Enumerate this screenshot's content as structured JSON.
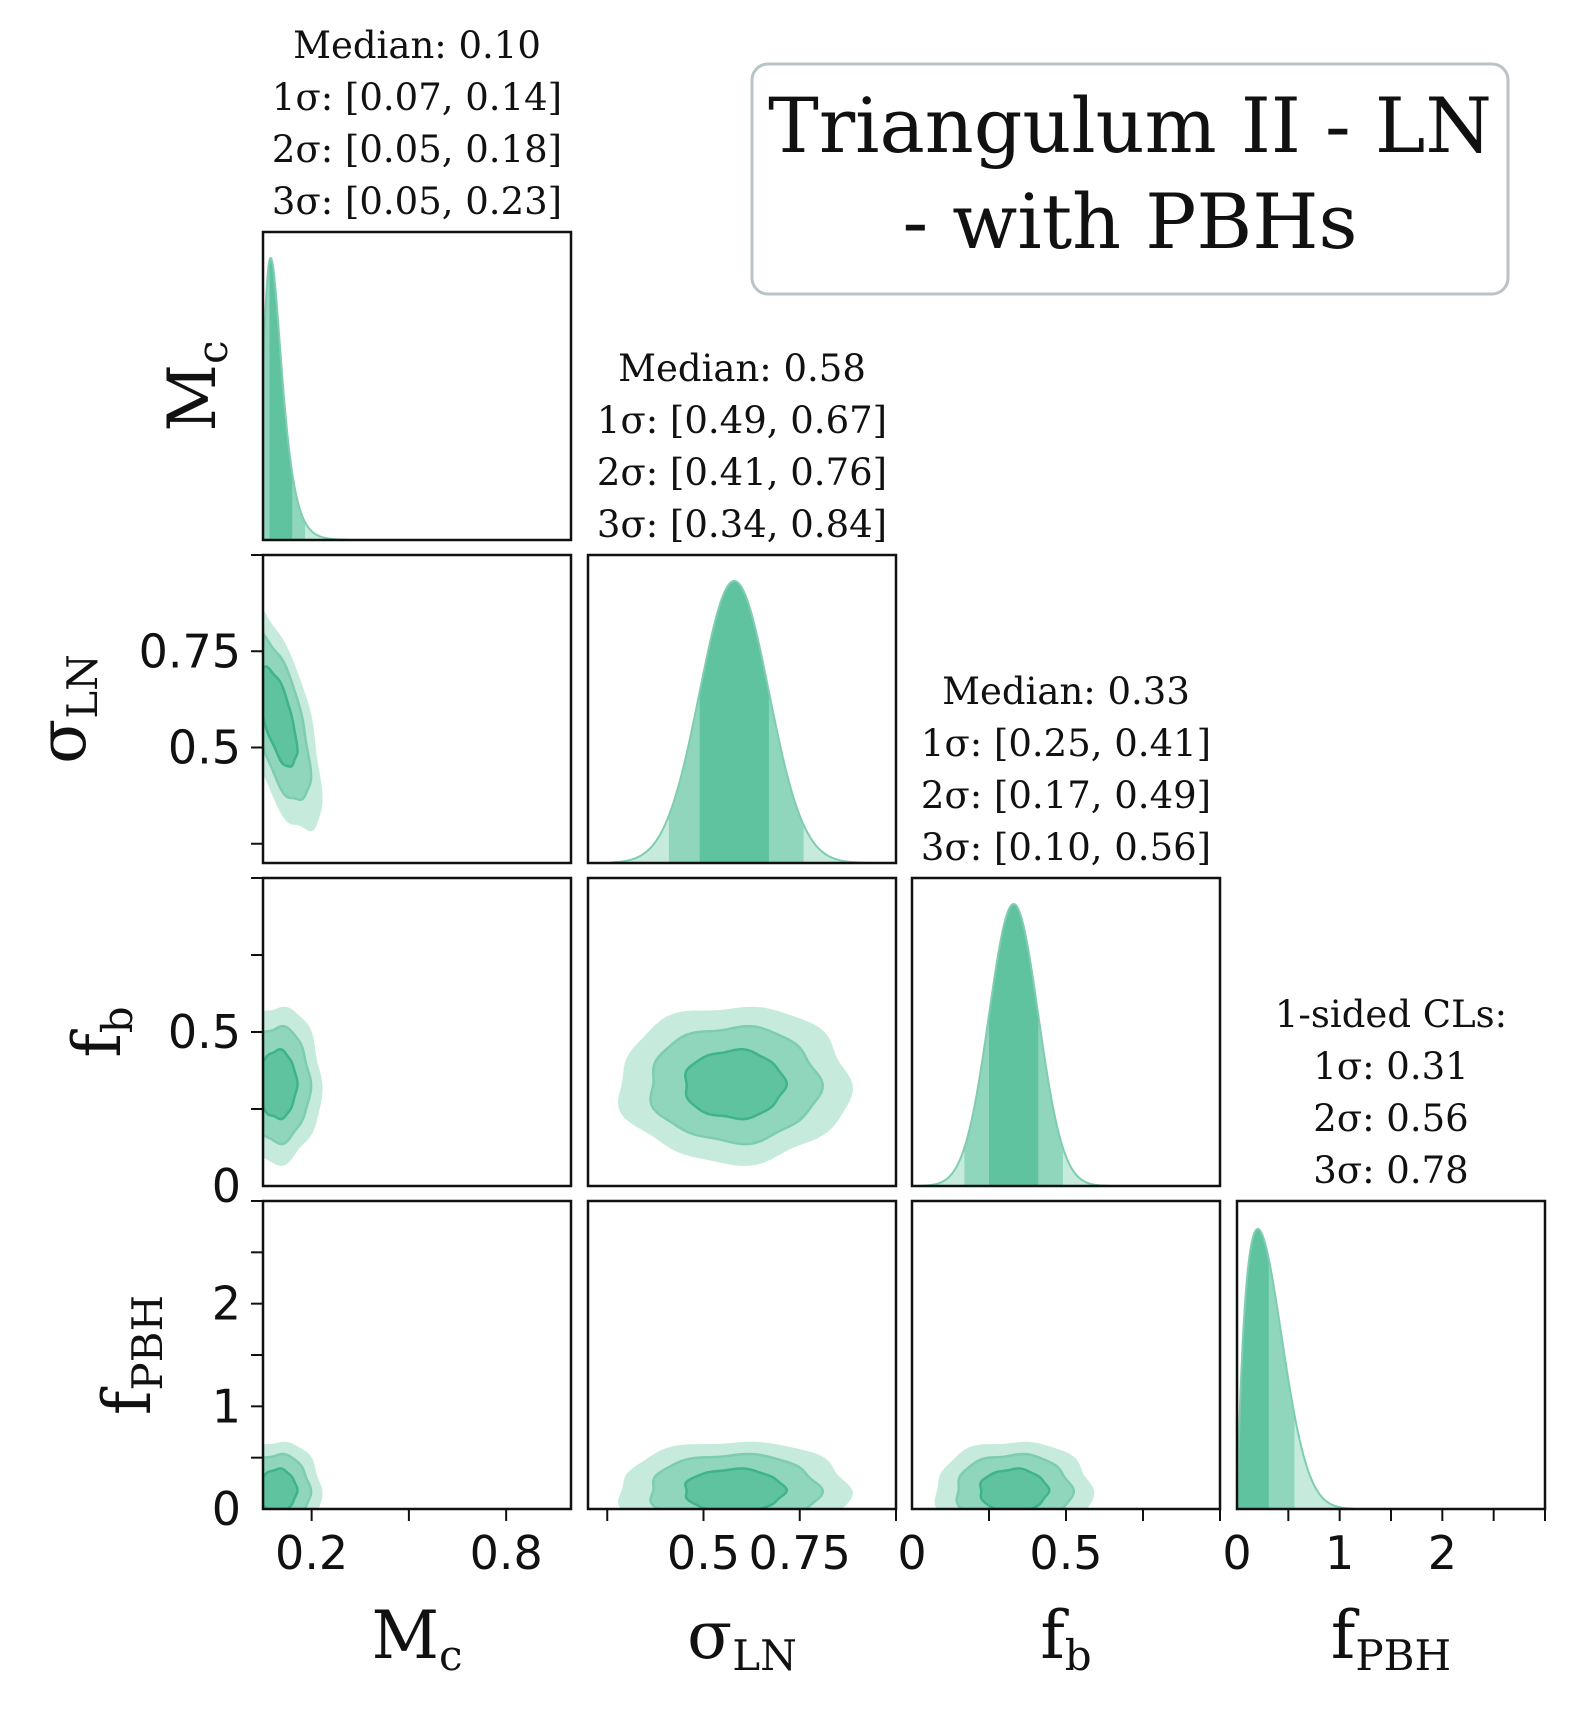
{
  "title_box": {
    "lines": [
      "Triangulum II - LN",
      "- with PBHs"
    ]
  },
  "colors": {
    "sigma1": "#5fc3a0",
    "sigma2": "#8fd6bd",
    "sigma3": "#c6ebdd",
    "line1": "#3fb48a",
    "line2": "#7fcdb0",
    "axis": "#111111",
    "legend_border": "#b8c4c8"
  },
  "chart_data": {
    "type": "corner",
    "parameters": [
      {
        "name": "Mc",
        "label_main": "M",
        "label_sub": "c",
        "range": [
          0.05,
          1.0
        ],
        "ticks": [
          0.2,
          0.8
        ],
        "tick_labels": [
          "0.2",
          "0.8"
        ],
        "minor_ticks": [
          0.2,
          0.5,
          0.8
        ]
      },
      {
        "name": "sigma_LN",
        "label_main": "σ",
        "label_sub": "LN",
        "range": [
          0.2,
          1.0
        ],
        "ticks": [
          0.5,
          0.75
        ],
        "tick_labels": [
          "0.5",
          "0.75"
        ],
        "minor_ticks": [
          0.25,
          0.5,
          0.75,
          1.0
        ]
      },
      {
        "name": "fb",
        "label_main": "f",
        "label_sub": "b",
        "range": [
          0.0,
          1.0
        ],
        "ticks": [
          0.0,
          0.5
        ],
        "tick_labels": [
          "0",
          "0.5"
        ],
        "minor_ticks": [
          0.25,
          0.5,
          0.75,
          1.0
        ]
      },
      {
        "name": "fPBH",
        "label_main": "f",
        "label_sub": "PBH",
        "range": [
          0.0,
          3.0
        ],
        "ticks": [
          0,
          1,
          2
        ],
        "tick_labels": [
          "0",
          "1",
          "2"
        ],
        "minor_ticks": [
          0.5,
          1.0,
          1.5,
          2.0,
          2.5,
          3.0
        ]
      }
    ],
    "marginal_annotations": [
      [
        "Median: 0.10",
        "1σ: [0.07, 0.14]",
        "2σ: [0.05, 0.18]",
        "3σ: [0.05, 0.23]"
      ],
      [
        "Median: 0.58",
        "1σ: [0.49, 0.67]",
        "2σ: [0.41, 0.76]",
        "3σ: [0.34, 0.84]"
      ],
      [
        "Median: 0.33",
        "1σ: [0.25, 0.41]",
        "2σ: [0.17, 0.49]",
        "3σ: [0.10, 0.56]"
      ],
      [
        "1-sided CLs:",
        "1σ: 0.31",
        "2σ: 0.56",
        "3σ: 0.78"
      ]
    ],
    "marginals": [
      {
        "kind": "skewed",
        "median": 0.1,
        "s1": [
          0.07,
          0.14
        ],
        "s2": [
          0.05,
          0.18
        ],
        "s3": [
          0.05,
          0.23
        ],
        "peak_x": 0.08
      },
      {
        "kind": "gaussian",
        "median": 0.58,
        "s1": [
          0.49,
          0.67
        ],
        "s2": [
          0.41,
          0.76
        ],
        "s3": [
          0.34,
          0.84
        ],
        "peak_x": 0.58
      },
      {
        "kind": "gaussian",
        "median": 0.33,
        "s1": [
          0.25,
          0.41
        ],
        "s2": [
          0.17,
          0.49
        ],
        "s3": [
          0.1,
          0.56
        ],
        "peak_x": 0.33
      },
      {
        "kind": "one_sided",
        "s1": 0.31,
        "s2": 0.56,
        "s3": 0.78,
        "peak_x": 0.15
      }
    ],
    "contour_levels": [
      "1σ",
      "2σ",
      "3σ"
    ]
  }
}
